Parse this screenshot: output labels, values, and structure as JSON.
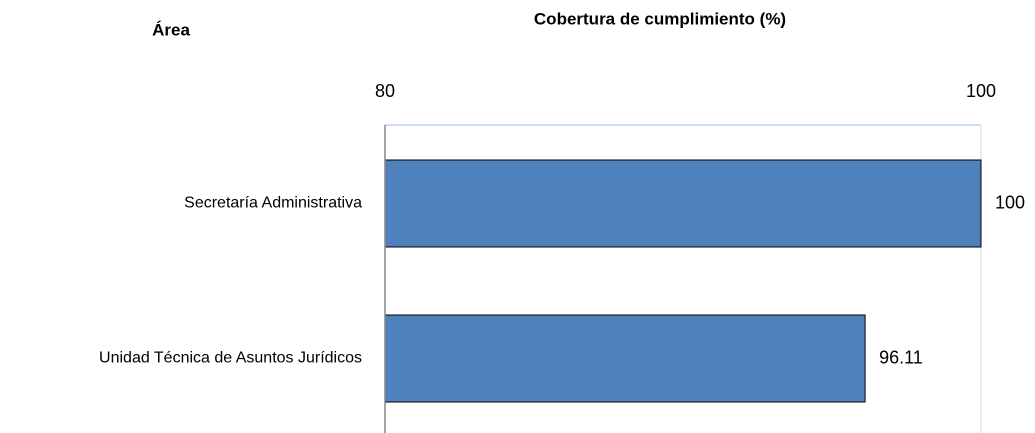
{
  "chart_data": {
    "type": "bar",
    "orientation": "horizontal",
    "title": "Cobertura de cumplimiento (%)",
    "category_axis_label": "Área",
    "categories": [
      "Secretaría Administrativa",
      "Unidad Técnica de Asuntos Jurídicos"
    ],
    "values": [
      100,
      96.11
    ],
    "color": "#4f81bd",
    "xlim": [
      80,
      100
    ],
    "xticks": [
      80,
      100
    ],
    "grid": true
  }
}
